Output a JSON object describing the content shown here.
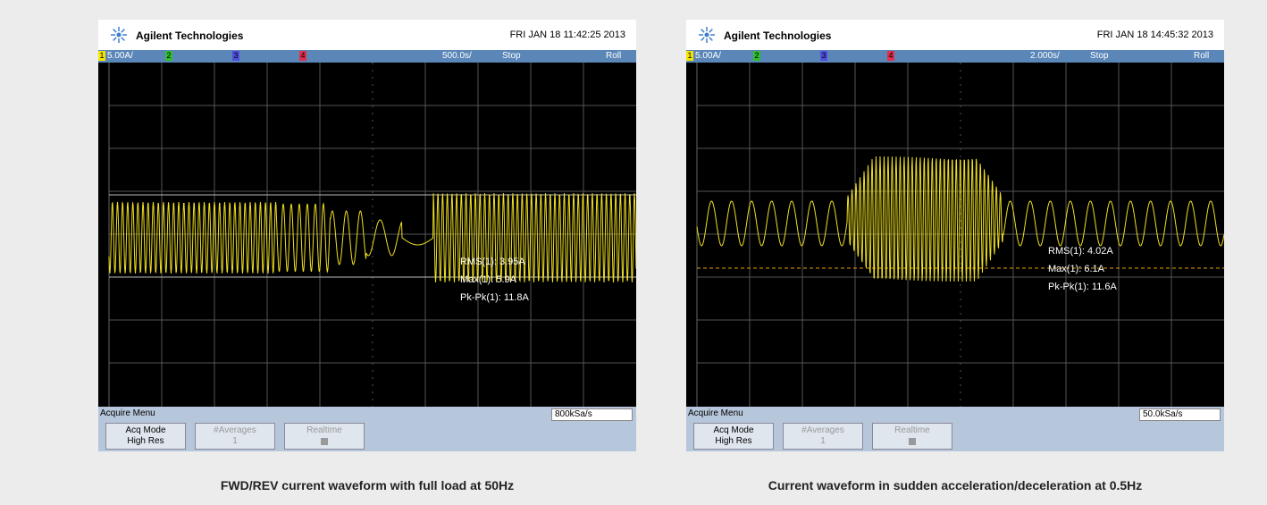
{
  "panels": [
    {
      "header": {
        "brand": "Agilent Technologies",
        "datetime": "FRI JAN 18 11:42:25 2013"
      },
      "status": {
        "scale": "5.00A/",
        "channels": [
          "1",
          "2",
          "3",
          "4"
        ],
        "timebase": "500.0s/",
        "mode": "Stop",
        "trigger": "Roll"
      },
      "measurements": [
        "RMS(1): 3.95A",
        "Max(1): 5.9A",
        "Pk-Pk(1): 11.8A"
      ],
      "menu": {
        "title": "Acquire Menu",
        "sample_rate": "800kSa/s",
        "buttons": [
          {
            "label": "Acq Mode",
            "value": "High Res"
          },
          {
            "label": "#Averages",
            "value": "1"
          },
          {
            "label": "Realtime"
          }
        ]
      },
      "caption": "FWD/REV current waveform with full load at 50Hz"
    },
    {
      "header": {
        "brand": "Agilent Technologies",
        "datetime": "FRI JAN 18 14:45:32 2013"
      },
      "status": {
        "scale": "5.00A/",
        "channels": [
          "1",
          "2",
          "3",
          "4"
        ],
        "timebase": "2.000s/",
        "mode": "Stop",
        "trigger": "Roll"
      },
      "measurements": [
        "RMS(1): 4.02A",
        "Max(1): 6.1A",
        "Pk-Pk(1): 11.6A"
      ],
      "menu": {
        "title": "Acquire Menu",
        "sample_rate": "50.0kSa/s",
        "buttons": [
          {
            "label": "Acq Mode",
            "value": "High Res"
          },
          {
            "label": "#Averages",
            "value": "1"
          },
          {
            "label": "Realtime"
          }
        ]
      },
      "caption": "Current waveform in sudden acceleration/deceleration at 0.5Hz"
    }
  ]
}
